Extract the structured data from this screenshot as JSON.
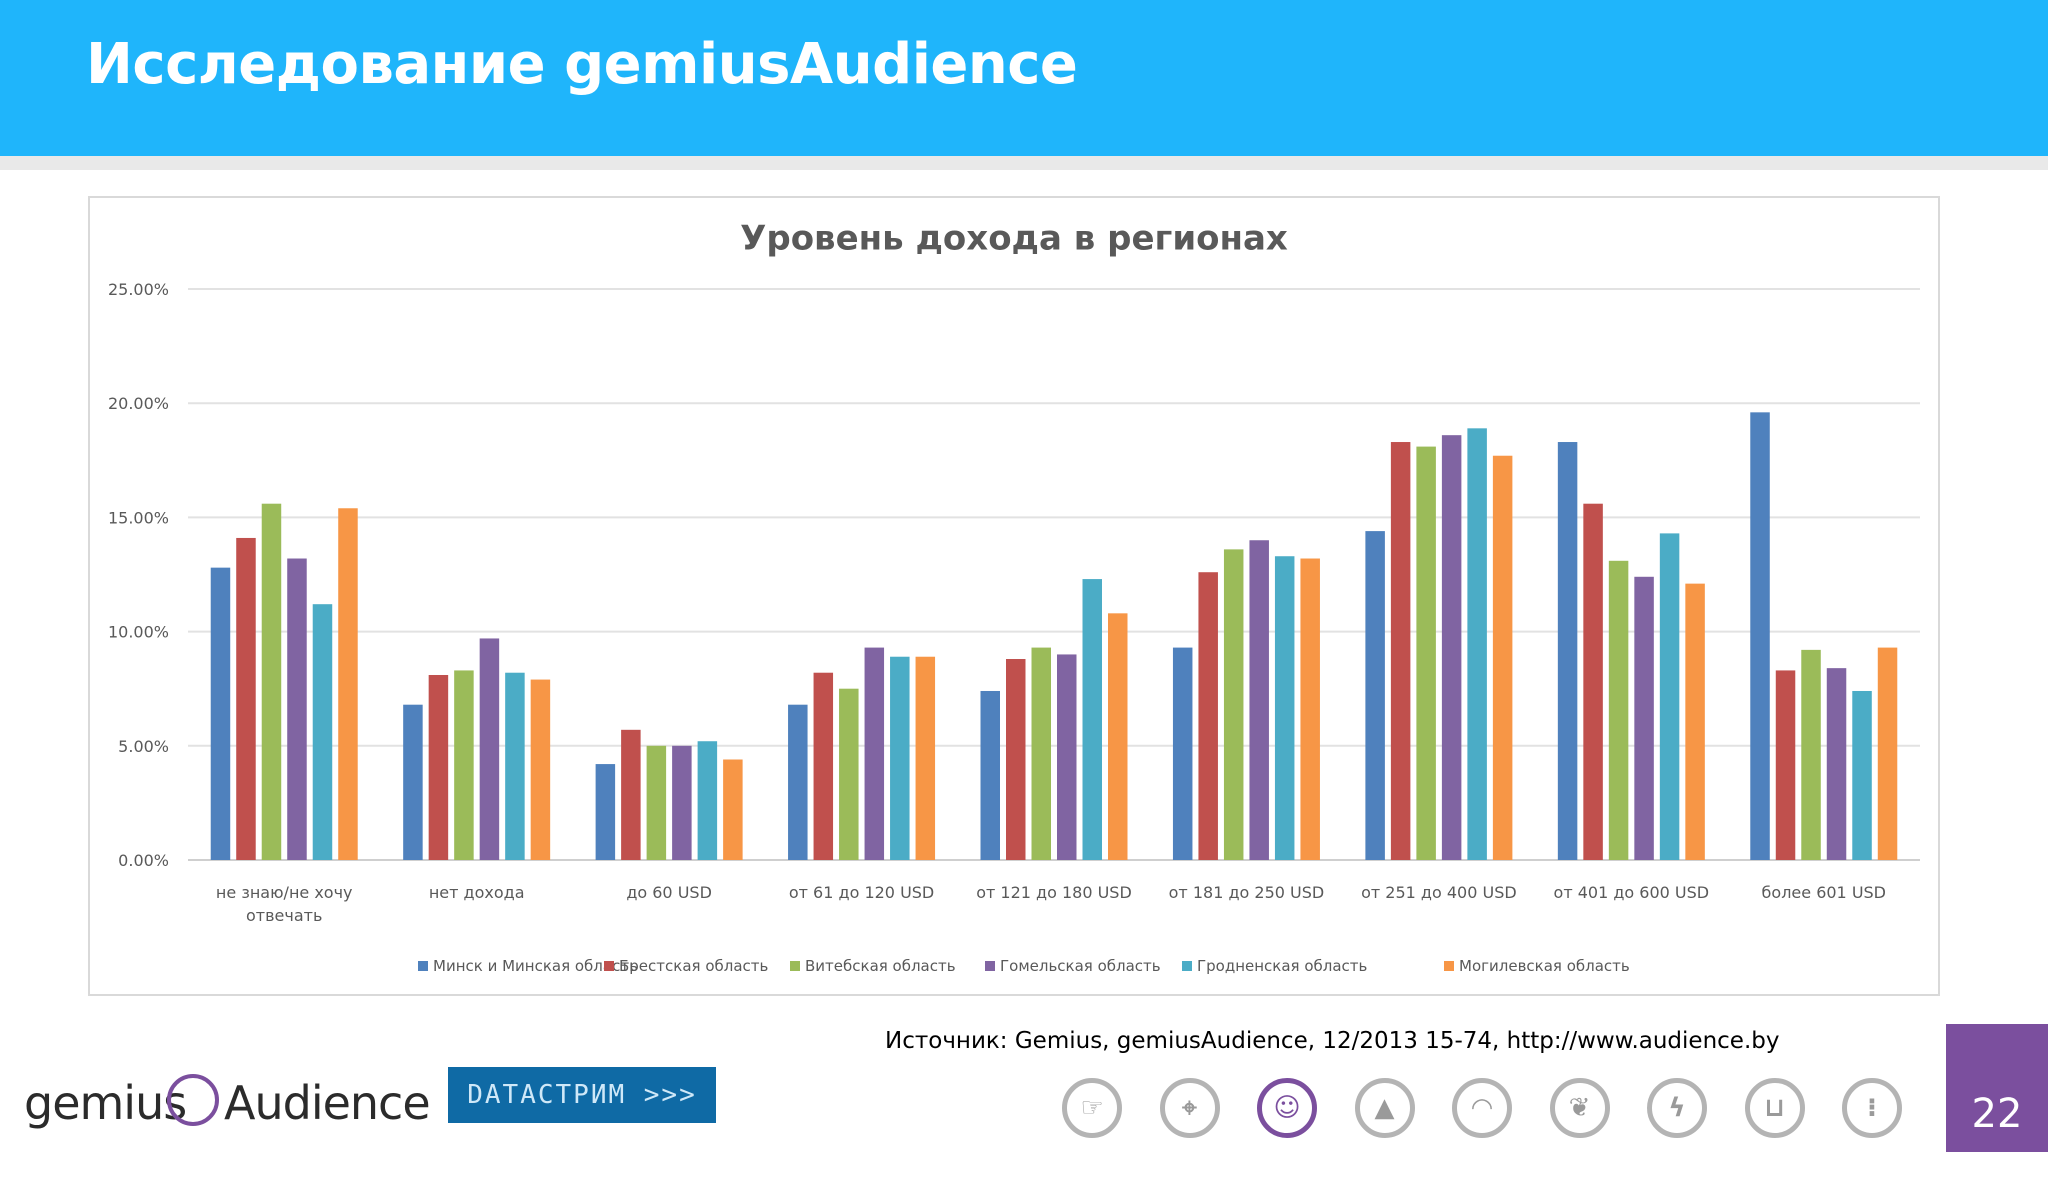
{
  "header": {
    "title": "Исследование gemiusAudience"
  },
  "source": "Источник: Gemius, gemiusAudience, 12/2013 15-74,  http://www.audience.by",
  "footer": {
    "logo_left": "gemius",
    "logo_right": "Audience",
    "partner_label": "DATACTPИM >>>",
    "page_number": "22",
    "nav_icons": [
      "hand-pointer-icon",
      "map-pin-icon",
      "people-icon",
      "mountain-icon",
      "signal-icon",
      "leaf-icon",
      "lightning-icon",
      "cart-icon",
      "traffic-light-icon"
    ],
    "active_icon_index": 2
  },
  "chart_data": {
    "type": "bar",
    "title": "Уровень дохода в регионах",
    "xlabel": "",
    "ylabel": "",
    "ylim": [
      0,
      25
    ],
    "y_ticks": [
      "0.00%",
      "5.00%",
      "10.00%",
      "15.00%",
      "20.00%",
      "25.00%"
    ],
    "grid": true,
    "legend_position": "bottom",
    "categories": [
      [
        "не знаю/не хочу",
        "отвечать"
      ],
      [
        "нет дохода"
      ],
      [
        "до 60 USD"
      ],
      [
        "от 61 до 120 USD"
      ],
      [
        "от 121 до 180 USD"
      ],
      [
        "от 181 до 250 USD"
      ],
      [
        "от 251 до 400 USD"
      ],
      [
        "от 401 до 600 USD"
      ],
      [
        "более 601 USD"
      ]
    ],
    "series": [
      {
        "name": "Минск и Минская область",
        "color": "#4f81bd",
        "values": [
          12.8,
          6.8,
          4.2,
          6.8,
          7.4,
          9.3,
          14.4,
          18.3,
          19.6
        ]
      },
      {
        "name": "Брестская область",
        "color": "#c0504d",
        "values": [
          14.1,
          8.1,
          5.7,
          8.2,
          8.8,
          12.6,
          18.3,
          15.6,
          8.3
        ]
      },
      {
        "name": "Витебская область",
        "color": "#9bbb59",
        "values": [
          15.6,
          8.3,
          5.0,
          7.5,
          9.3,
          13.6,
          18.1,
          13.1,
          9.2
        ]
      },
      {
        "name": "Гомельская область",
        "color": "#8064a2",
        "values": [
          13.2,
          9.7,
          5.0,
          9.3,
          9.0,
          14.0,
          18.6,
          12.4,
          8.4
        ]
      },
      {
        "name": "Гродненская область",
        "color": "#4bacc6",
        "values": [
          11.2,
          8.2,
          5.2,
          8.9,
          12.3,
          13.3,
          18.9,
          14.3,
          7.4
        ]
      },
      {
        "name": "Могилевская область",
        "color": "#f79646",
        "values": [
          15.4,
          7.9,
          4.4,
          8.9,
          10.8,
          13.2,
          17.7,
          12.1,
          9.3
        ]
      }
    ]
  }
}
